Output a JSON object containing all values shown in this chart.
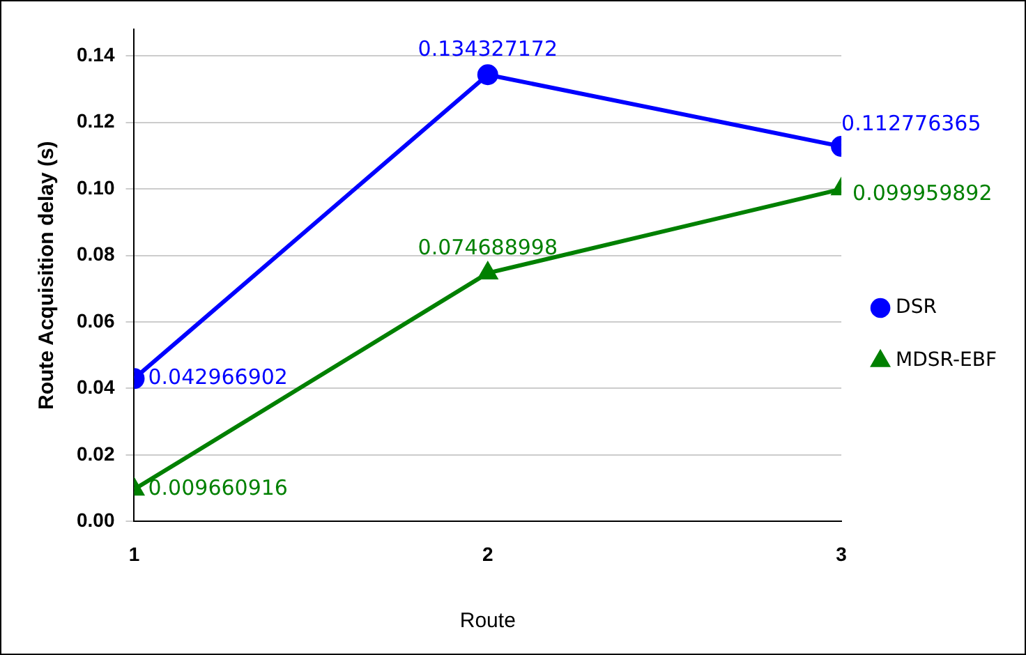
{
  "chart_data": {
    "type": "line",
    "xlabel": "Route",
    "ylabel": "Route Acquisition delay (s)",
    "x": [
      1,
      2,
      3
    ],
    "xlim": [
      1,
      3
    ],
    "xticks": [
      1,
      2,
      3
    ],
    "ylim": [
      0,
      0.148
    ],
    "yticks": [
      {
        "value": 0,
        "label": "0.00"
      },
      {
        "value": 0.02,
        "label": "0.02"
      },
      {
        "value": 0.04,
        "label": "0.04"
      },
      {
        "value": 0.06,
        "label": "0.06"
      },
      {
        "value": 0.08,
        "label": "0.08"
      },
      {
        "value": 0.1,
        "label": "0.10"
      },
      {
        "value": 0.12,
        "label": "0.12"
      },
      {
        "value": 0.14,
        "label": "0.14"
      }
    ],
    "series": [
      {
        "name": "DSR",
        "color": "#0000ff",
        "marker": "circle",
        "values": [
          0.042966902,
          0.134327172,
          0.112776365
        ]
      },
      {
        "name": "MDSR-EBF",
        "color": "#008000",
        "marker": "triangle",
        "values": [
          0.009660916,
          0.074688998,
          0.099959892
        ]
      }
    ],
    "data_labels": true,
    "grid": "y",
    "legend": "right",
    "line_style": "solid"
  }
}
